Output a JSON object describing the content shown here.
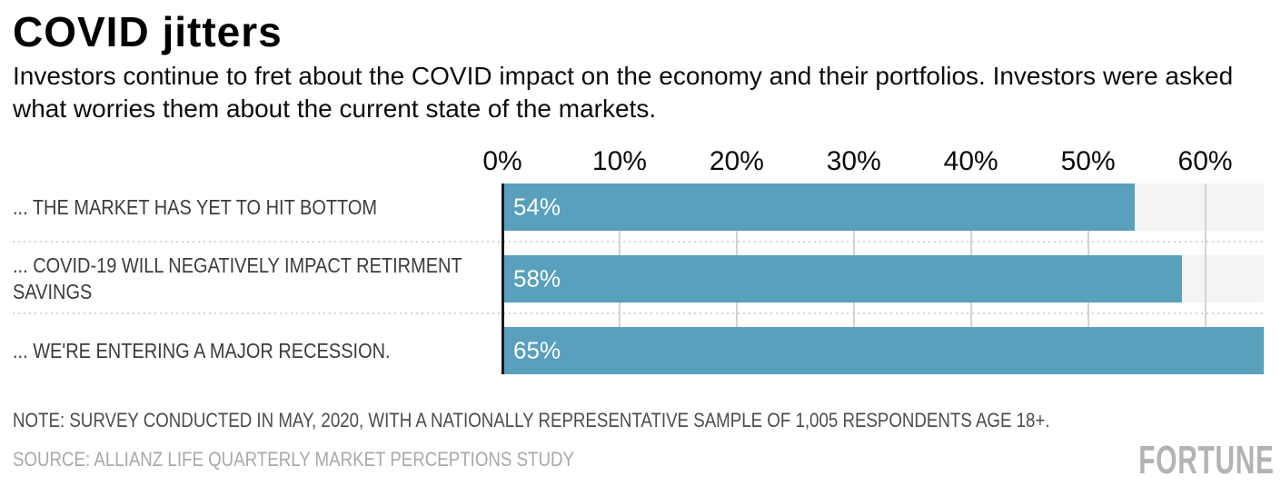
{
  "header": {
    "title": "COVID jitters",
    "subtitle": "Investors continue to fret about the COVID impact on the economy and their portfolios. Investors were asked what worries them about the current state of the markets."
  },
  "chart_data": {
    "type": "bar",
    "orientation": "horizontal",
    "title": "COVID jitters",
    "categories": [
      "... THE MARKET HAS YET TO HIT BOTTOM",
      "... COVID-19 WILL NEGATIVELY IMPACT RETIRMENT SAVINGS",
      "... WE'RE ENTERING A MAJOR RECESSION."
    ],
    "values": [
      54,
      58,
      65
    ],
    "value_labels": [
      "54%",
      "58%",
      "65%"
    ],
    "xlim": [
      0,
      65
    ],
    "axis_ticks": [
      0,
      10,
      20,
      30,
      40,
      50,
      60
    ],
    "tick_suffix": "%",
    "grid": true,
    "legend": "none",
    "colors": {
      "bar": "#58a0bb",
      "track": "#f4f4f4",
      "gridline": "#d3d3d3",
      "axis_line": "#1a1a1a",
      "bar_label": "#ffffff"
    }
  },
  "footer": {
    "note": "NOTE: SURVEY CONDUCTED IN MAY, 2020, WITH A NATIONALLY REPRESENTATIVE SAMPLE OF 1,005 RESPONDENTS AGE 18+.",
    "source": "SOURCE: ALLIANZ LIFE QUARTERLY MARKET PERCEPTIONS STUDY",
    "brand": "FORTUNE"
  }
}
